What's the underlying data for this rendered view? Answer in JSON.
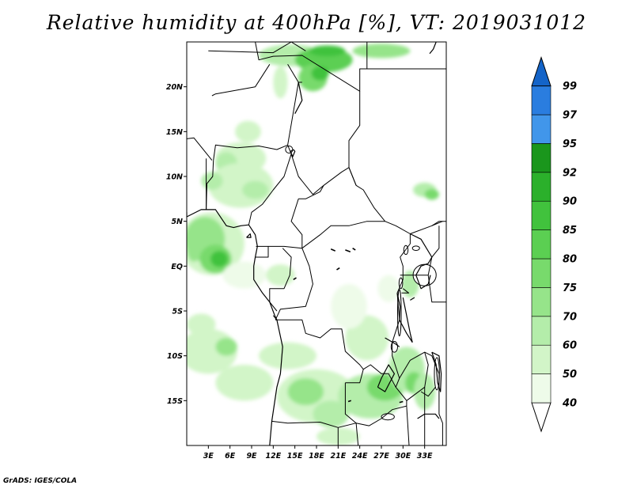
{
  "title": "Relative humidity at 400hPa [%], VT: 2019031012",
  "credit": "GrADS: IGES/COLA",
  "map": {
    "lon_range": [
      0,
      36
    ],
    "lat_range": [
      -20,
      25
    ],
    "lat_ticks": [
      {
        "value": 20,
        "label": "20N"
      },
      {
        "value": 15,
        "label": "15N"
      },
      {
        "value": 10,
        "label": "10N"
      },
      {
        "value": 5,
        "label": "5N"
      },
      {
        "value": 0,
        "label": "EQ"
      },
      {
        "value": -5,
        "label": "5S"
      },
      {
        "value": -10,
        "label": "10S"
      },
      {
        "value": -15,
        "label": "15S"
      }
    ],
    "lon_ticks": [
      {
        "value": 3,
        "label": "3E"
      },
      {
        "value": 6,
        "label": "6E"
      },
      {
        "value": 9,
        "label": "9E"
      },
      {
        "value": 12,
        "label": "12E"
      },
      {
        "value": 15,
        "label": "15E"
      },
      {
        "value": 18,
        "label": "18E"
      },
      {
        "value": 21,
        "label": "21E"
      },
      {
        "value": 24,
        "label": "24E"
      },
      {
        "value": 27,
        "label": "27E"
      },
      {
        "value": 30,
        "label": "30E"
      },
      {
        "value": 33,
        "label": "33E"
      }
    ]
  },
  "colorbar": {
    "levels": [
      {
        "label": "40",
        "color": "#eefbe9"
      },
      {
        "label": "50",
        "color": "#d2f5c8"
      },
      {
        "label": "60",
        "color": "#b4edaa"
      },
      {
        "label": "70",
        "color": "#96e48a"
      },
      {
        "label": "75",
        "color": "#78da6c"
      },
      {
        "label": "80",
        "color": "#5bcf52"
      },
      {
        "label": "85",
        "color": "#41c23d"
      },
      {
        "label": "90",
        "color": "#2bb02b"
      },
      {
        "label": "92",
        "color": "#1a961c"
      },
      {
        "label": "95",
        "color": "#4196ea"
      },
      {
        "label": "97",
        "color": "#2a7ddf"
      },
      {
        "label": "99",
        "color": "#1464c8"
      }
    ],
    "under_color": "#ffffff",
    "over_color": "#1464c8"
  },
  "humidity_patches": [
    {
      "lon": 14.5,
      "lat": 23.5,
      "rx": 4.5,
      "ry": 1.2,
      "level": 2
    },
    {
      "lon": 19.0,
      "lat": 23.0,
      "rx": 4.0,
      "ry": 1.4,
      "level": 5
    },
    {
      "lon": 19.5,
      "lat": 24.0,
      "rx": 2.5,
      "ry": 0.6,
      "level": 6
    },
    {
      "lon": 27.0,
      "lat": 24.0,
      "rx": 4.0,
      "ry": 0.8,
      "level": 3
    },
    {
      "lon": 17.5,
      "lat": 21.0,
      "rx": 2.0,
      "ry": 1.5,
      "level": 4
    },
    {
      "lon": 18.5,
      "lat": 21.5,
      "rx": 1.2,
      "ry": 0.8,
      "level": 6
    },
    {
      "lon": 13.0,
      "lat": 20.5,
      "rx": 1.0,
      "ry": 1.8,
      "level": 1
    },
    {
      "lon": 8.5,
      "lat": 15.0,
      "rx": 1.8,
      "ry": 1.2,
      "level": 1
    },
    {
      "lon": 7.5,
      "lat": 12.0,
      "rx": 3.5,
      "ry": 1.8,
      "level": 1
    },
    {
      "lon": 5.5,
      "lat": 11.5,
      "rx": 1.5,
      "ry": 1.2,
      "level": 2
    },
    {
      "lon": 7.5,
      "lat": 9.0,
      "rx": 4.5,
      "ry": 2.5,
      "level": 1
    },
    {
      "lon": 9.5,
      "lat": 8.5,
      "rx": 1.8,
      "ry": 1.0,
      "level": 2
    },
    {
      "lon": 3.5,
      "lat": 9.5,
      "rx": 1.5,
      "ry": 1.0,
      "level": 2
    },
    {
      "lon": 33.0,
      "lat": 8.5,
      "rx": 1.6,
      "ry": 0.8,
      "level": 2
    },
    {
      "lon": 34.0,
      "lat": 8.0,
      "rx": 1.0,
      "ry": 0.6,
      "level": 4
    },
    {
      "lon": 3.5,
      "lat": 2.5,
      "rx": 4.5,
      "ry": 3.5,
      "level": 1
    },
    {
      "lon": 2.5,
      "lat": 3.0,
      "rx": 2.8,
      "ry": 2.5,
      "level": 3
    },
    {
      "lon": 4.0,
      "lat": 0.8,
      "rx": 2.2,
      "ry": 1.6,
      "level": 4
    },
    {
      "lon": 4.5,
      "lat": 0.8,
      "rx": 1.2,
      "ry": 0.9,
      "level": 6
    },
    {
      "lon": 1.0,
      "lat": 2.0,
      "rx": 1.0,
      "ry": 1.5,
      "level": 3
    },
    {
      "lon": 8.0,
      "lat": -1.0,
      "rx": 3.0,
      "ry": 1.5,
      "level": 0
    },
    {
      "lon": 13.0,
      "lat": -1.0,
      "rx": 2.0,
      "ry": 1.2,
      "level": 1
    },
    {
      "lon": 3.0,
      "lat": -9.5,
      "rx": 4.0,
      "ry": 2.5,
      "level": 1
    },
    {
      "lon": 5.5,
      "lat": -9.0,
      "rx": 1.5,
      "ry": 1.0,
      "level": 3
    },
    {
      "lon": 2.0,
      "lat": -6.5,
      "rx": 2.0,
      "ry": 1.2,
      "level": 1
    },
    {
      "lon": 8.0,
      "lat": -13.0,
      "rx": 4.0,
      "ry": 2.0,
      "level": 1
    },
    {
      "lon": 14.0,
      "lat": -10.0,
      "rx": 4.0,
      "ry": 1.5,
      "level": 1
    },
    {
      "lon": 18.0,
      "lat": -14.5,
      "rx": 5.5,
      "ry": 3.0,
      "level": 1
    },
    {
      "lon": 16.5,
      "lat": -14.0,
      "rx": 2.5,
      "ry": 1.5,
      "level": 3
    },
    {
      "lon": 20.0,
      "lat": -16.5,
      "rx": 2.5,
      "ry": 1.5,
      "level": 2
    },
    {
      "lon": 21.0,
      "lat": -19.0,
      "rx": 3.0,
      "ry": 1.0,
      "level": 1
    },
    {
      "lon": 25.5,
      "lat": -14.5,
      "rx": 4.5,
      "ry": 2.5,
      "level": 2
    },
    {
      "lon": 27.5,
      "lat": -13.5,
      "rx": 2.5,
      "ry": 1.5,
      "level": 4
    },
    {
      "lon": 30.5,
      "lat": -11.5,
      "rx": 2.5,
      "ry": 2.5,
      "level": 2
    },
    {
      "lon": 31.5,
      "lat": -13.0,
      "rx": 1.2,
      "ry": 1.2,
      "level": 4
    },
    {
      "lon": 33.0,
      "lat": -14.0,
      "rx": 1.5,
      "ry": 2.0,
      "level": 2
    },
    {
      "lon": 25.0,
      "lat": -8.0,
      "rx": 3.0,
      "ry": 2.5,
      "level": 1
    },
    {
      "lon": 22.5,
      "lat": -4.5,
      "rx": 2.5,
      "ry": 2.5,
      "level": 0
    },
    {
      "lon": 28.0,
      "lat": -2.5,
      "rx": 1.5,
      "ry": 1.5,
      "level": 0
    },
    {
      "lon": 31.0,
      "lat": -2.0,
      "rx": 1.2,
      "ry": 1.5,
      "level": 2
    }
  ],
  "boundaries": [
    [
      [
        9.5,
        25
      ],
      [
        10,
        23
      ],
      [
        12,
        23.4
      ],
      [
        16,
        23.5
      ],
      [
        24,
        19.5
      ],
      [
        24,
        15.7
      ],
      [
        22.5,
        14
      ],
      [
        22.5,
        11
      ],
      [
        23.5,
        9
      ]
    ],
    [
      [
        3.5,
        19
      ],
      [
        4,
        19.2
      ],
      [
        9.5,
        20
      ],
      [
        11.5,
        22.5
      ]
    ],
    [
      [
        0,
        14.2
      ],
      [
        1,
        14.3
      ],
      [
        3.5,
        11.8
      ]
    ],
    [
      [
        3.7,
        11.8
      ],
      [
        4,
        13.5
      ],
      [
        7,
        13.2
      ],
      [
        10,
        13.4
      ],
      [
        12.5,
        13
      ],
      [
        14,
        13.5
      ],
      [
        15.5,
        20.5
      ],
      [
        14,
        22.5
      ]
    ],
    [
      [
        15.5,
        20.5
      ],
      [
        16,
        20.5
      ]
    ],
    [
      [
        2.7,
        12
      ],
      [
        2.7,
        6.3
      ]
    ],
    [
      [
        3.7,
        11.8
      ],
      [
        3.6,
        10
      ],
      [
        2.8,
        9.2
      ],
      [
        2.7,
        6.3
      ]
    ],
    [
      [
        14,
        13.5
      ],
      [
        14.5,
        12.5
      ],
      [
        13.5,
        10
      ],
      [
        12,
        8.5
      ],
      [
        10.5,
        6.9
      ],
      [
        9,
        6
      ],
      [
        8.6,
        4.6
      ]
    ],
    [
      [
        14.5,
        12.5
      ],
      [
        15.5,
        10
      ],
      [
        17.5,
        8
      ],
      [
        19,
        9
      ],
      [
        21.5,
        10.5
      ],
      [
        22.5,
        11
      ]
    ],
    [
      [
        15.5,
        7.5
      ],
      [
        16.5,
        7.5
      ],
      [
        18.5,
        8.3
      ],
      [
        19,
        9
      ]
    ],
    [
      [
        22.5,
        11
      ],
      [
        23.5,
        9
      ],
      [
        24.5,
        8.5
      ],
      [
        26,
        6.5
      ],
      [
        27.5,
        5
      ],
      [
        29,
        4.5
      ],
      [
        31,
        3.6
      ],
      [
        34,
        4.5
      ],
      [
        35.5,
        5
      ]
    ],
    [
      [
        15.5,
        7.5
      ],
      [
        14.5,
        5
      ],
      [
        16,
        3.5
      ],
      [
        16,
        2
      ]
    ],
    [
      [
        16,
        2
      ],
      [
        18.5,
        3.5
      ],
      [
        20,
        4.5
      ],
      [
        22.5,
        4.5
      ],
      [
        25,
        5
      ],
      [
        27.5,
        5
      ]
    ],
    [
      [
        9.6,
        2.2
      ],
      [
        11.3,
        2.2
      ],
      [
        11.3,
        1
      ],
      [
        9.5,
        1
      ]
    ],
    [
      [
        11.3,
        2.2
      ],
      [
        13.5,
        2.2
      ],
      [
        16,
        2
      ]
    ],
    [
      [
        13.3,
        2
      ],
      [
        14.5,
        1
      ],
      [
        14.3,
        -1
      ],
      [
        13.5,
        -2.5
      ],
      [
        11.5,
        -2.5
      ],
      [
        11.5,
        -4
      ],
      [
        12.5,
        -5
      ]
    ],
    [
      [
        16,
        2
      ],
      [
        17,
        0
      ],
      [
        17.5,
        -2
      ],
      [
        16.5,
        -4.5
      ],
      [
        13,
        -4.8
      ],
      [
        12.3,
        -6
      ]
    ],
    [
      [
        12,
        -5.5
      ],
      [
        12.5,
        -6
      ]
    ],
    [
      [
        12.3,
        -6
      ],
      [
        16,
        -6
      ],
      [
        16.5,
        -7.5
      ],
      [
        18.5,
        -8
      ],
      [
        20,
        -7
      ],
      [
        21.5,
        -7
      ],
      [
        22,
        -9.5
      ],
      [
        24,
        -11
      ],
      [
        24.5,
        -11.5
      ],
      [
        25.5,
        -11
      ],
      [
        27,
        -12
      ],
      [
        28,
        -12
      ],
      [
        29,
        -13.5
      ],
      [
        29.5,
        -12.5
      ],
      [
        28.5,
        -10
      ],
      [
        28.5,
        -8.5
      ],
      [
        29.5,
        -6
      ],
      [
        29.2,
        -3
      ],
      [
        30,
        -1.5
      ],
      [
        30,
        0
      ],
      [
        29.6,
        1
      ],
      [
        31,
        2.5
      ],
      [
        31,
        3.6
      ]
    ],
    [
      [
        11.8,
        -17.3
      ],
      [
        14,
        -17.5
      ],
      [
        18.5,
        -17.4
      ],
      [
        21,
        -18
      ],
      [
        23.5,
        -17.5
      ],
      [
        25.3,
        -17.8
      ],
      [
        27,
        -17
      ],
      [
        28.5,
        -16
      ],
      [
        30.5,
        -15.6
      ]
    ],
    [
      [
        22,
        -13
      ],
      [
        24,
        -13
      ],
      [
        24.5,
        -11.5
      ]
    ],
    [
      [
        22,
        -13
      ],
      [
        22,
        -16.5
      ],
      [
        23.5,
        -17.5
      ]
    ],
    [
      [
        21,
        -18
      ],
      [
        21,
        -22
      ]
    ],
    [
      [
        23.5,
        -17.5
      ],
      [
        24,
        -22
      ]
    ],
    [
      [
        29.5,
        -12.5
      ],
      [
        31,
        -10.5
      ],
      [
        33,
        -9.6
      ],
      [
        33.5,
        -11
      ],
      [
        33,
        -13.5
      ],
      [
        30.5,
        -15
      ]
    ],
    [
      [
        33,
        -9.6
      ],
      [
        34,
        -10
      ],
      [
        35,
        -12
      ],
      [
        35,
        -16.5
      ],
      [
        35.5,
        -17.5
      ],
      [
        35.5,
        -22
      ]
    ],
    [
      [
        32.5,
        -14
      ],
      [
        33.5,
        -14.5
      ],
      [
        34.5,
        -13.5
      ]
    ],
    [
      [
        33,
        -13.5
      ],
      [
        33,
        -22
      ]
    ],
    [
      [
        30.5,
        -15.6
      ],
      [
        31,
        -22
      ]
    ],
    [
      [
        29,
        -13.5
      ],
      [
        30.5,
        -15
      ],
      [
        30.5,
        -15.6
      ]
    ],
    [
      [
        29.6,
        -1
      ],
      [
        30.5,
        -1
      ],
      [
        33.5,
        -1
      ],
      [
        34,
        1
      ],
      [
        35,
        2
      ],
      [
        35,
        4.5
      ]
    ],
    [
      [
        33.5,
        -1
      ],
      [
        34,
        -4
      ],
      [
        36,
        -4
      ]
    ],
    [
      [
        30,
        -2.5
      ],
      [
        30.8,
        -3
      ],
      [
        29.8,
        -3
      ]
    ],
    [
      [
        34,
        4.5
      ],
      [
        35,
        5
      ],
      [
        36,
        5
      ]
    ],
    [
      [
        3,
        24
      ],
      [
        12,
        23.8
      ],
      [
        14.5,
        25
      ]
    ],
    [
      [
        14.5,
        25
      ],
      [
        16.5,
        24
      ]
    ],
    [
      [
        24,
        19.5
      ],
      [
        24,
        22
      ],
      [
        25,
        22
      ],
      [
        36,
        22
      ]
    ],
    [
      [
        25,
        22
      ],
      [
        25,
        25
      ]
    ],
    [
      [
        36,
        22
      ],
      [
        36,
        25
      ]
    ]
  ],
  "coastline": [
    [
      [
        0,
        5.5
      ],
      [
        2,
        6.3
      ],
      [
        4,
        6.3
      ],
      [
        5.5,
        4.5
      ],
      [
        6.5,
        4.3
      ],
      [
        7.5,
        4.5
      ],
      [
        8.6,
        4.6
      ],
      [
        9.5,
        3.5
      ],
      [
        9.8,
        2.2
      ],
      [
        9.5,
        1
      ],
      [
        9.3,
        0
      ],
      [
        9.3,
        -1.5
      ],
      [
        10.5,
        -3
      ],
      [
        11.5,
        -4
      ],
      [
        12.2,
        -5.5
      ],
      [
        12.5,
        -6
      ],
      [
        13.3,
        -9
      ],
      [
        13,
        -12
      ],
      [
        12.5,
        -13.5
      ],
      [
        11.8,
        -17.3
      ],
      [
        11.5,
        -20
      ]
    ],
    [
      [
        8.3,
        3.2
      ],
      [
        8.8,
        3.6
      ],
      [
        8.9,
        3.2
      ],
      [
        8.3,
        3.2
      ]
    ],
    [
      [
        0,
        5.5
      ],
      [
        0,
        6
      ]
    ],
    [
      [
        15.5,
        20.5
      ],
      [
        16,
        18.5
      ],
      [
        15,
        17
      ]
    ],
    [
      [
        14.8,
        13
      ],
      [
        14.4,
        12.8
      ],
      [
        14.7,
        12.2
      ],
      [
        15,
        12.8
      ],
      [
        14.8,
        13
      ]
    ],
    [
      [
        31,
        3.6
      ],
      [
        32.5,
        3
      ],
      [
        34,
        1
      ],
      [
        33.5,
        0.3
      ],
      [
        32.5,
        0
      ],
      [
        31.8,
        -1
      ],
      [
        32.5,
        -2.5
      ],
      [
        33.5,
        -2
      ],
      [
        33.8,
        -1
      ]
    ],
    [
      [
        29.2,
        -3
      ],
      [
        29.6,
        -4.5
      ],
      [
        29.5,
        -6
      ],
      [
        30.5,
        -7.5
      ],
      [
        31.3,
        -8.5
      ]
    ],
    [
      [
        30,
        -3.5
      ],
      [
        30.5,
        -5.5
      ],
      [
        31,
        -7.5
      ],
      [
        31.3,
        -8.5
      ]
    ],
    [
      [
        34,
        -9.6
      ],
      [
        34.6,
        -11
      ],
      [
        34.8,
        -13
      ],
      [
        35.2,
        -14
      ],
      [
        35.3,
        -12
      ],
      [
        35,
        -10
      ],
      [
        34,
        -9.6
      ]
    ],
    [
      [
        26.5,
        -13.5
      ],
      [
        27,
        -12.5
      ],
      [
        28,
        -11
      ],
      [
        28.8,
        -12
      ],
      [
        27.5,
        -14
      ],
      [
        26.5,
        -13.5
      ]
    ],
    [
      [
        32,
        -17
      ],
      [
        33,
        -16.5
      ],
      [
        34.5,
        -16.5
      ],
      [
        35,
        -17
      ]
    ],
    [
      [
        27.5,
        -8
      ],
      [
        29,
        -8.7
      ],
      [
        29.5,
        -9
      ]
    ],
    [
      [
        33.7,
        23.7
      ],
      [
        34.2,
        24.2
      ],
      [
        34.6,
        25
      ]
    ],
    [
      [
        31,
        -3.8
      ],
      [
        31.6,
        -3.5
      ]
    ]
  ],
  "lakes": [
    {
      "lon": 14.2,
      "lat": 13.0,
      "rx": 0.5,
      "ry": 0.4
    },
    {
      "lon": 33.0,
      "lat": -1.0,
      "rx": 1.6,
      "ry": 1.2
    },
    {
      "lon": 29.5,
      "lat": -5.2,
      "rx": 0.25,
      "ry": 2.6
    },
    {
      "lon": 34.7,
      "lat": -12.0,
      "rx": 0.35,
      "ry": 1.8
    },
    {
      "lon": 29.7,
      "lat": -1.9,
      "rx": 0.25,
      "ry": 0.6
    },
    {
      "lon": 28.8,
      "lat": -9.0,
      "rx": 0.45,
      "ry": 0.6
    },
    {
      "lon": 30.4,
      "lat": 1.8,
      "rx": 0.3,
      "ry": 0.5
    },
    {
      "lon": 31.8,
      "lat": 2.0,
      "rx": 0.5,
      "ry": 0.25
    },
    {
      "lon": 27.9,
      "lat": -16.8,
      "rx": 0.9,
      "ry": 0.35
    }
  ],
  "river_marks": [
    [
      [
        20,
        1.9
      ],
      [
        20.6,
        1.7
      ]
    ],
    [
      [
        22,
        1.8
      ],
      [
        22.7,
        1.6
      ]
    ],
    [
      [
        23,
        2.0
      ],
      [
        23.4,
        1.8
      ]
    ],
    [
      [
        20.8,
        -0.4
      ],
      [
        21.2,
        -0.2
      ]
    ],
    [
      [
        14.8,
        -1.5
      ],
      [
        15.2,
        -1.3
      ]
    ],
    [
      [
        22.4,
        -15.1
      ],
      [
        22.8,
        -15.0
      ]
    ],
    [
      [
        29.5,
        -15.2
      ],
      [
        30.0,
        -15.1
      ]
    ]
  ]
}
